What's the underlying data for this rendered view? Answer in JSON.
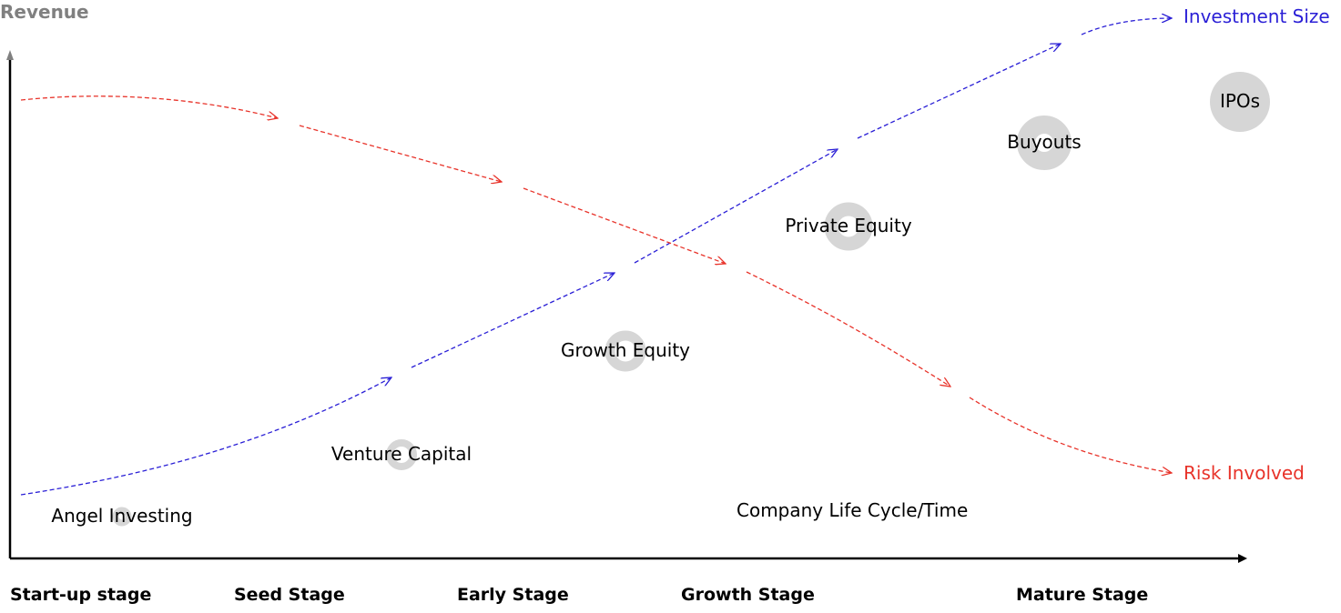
{
  "axis": {
    "y_label": "Revenue",
    "x_label": "Company Life Cycle/Time"
  },
  "stages": [
    "Start-up stage",
    "Seed Stage",
    "Early Stage",
    "Growth Stage",
    "Mature Stage"
  ],
  "nodes": [
    {
      "label": "Angel Investing"
    },
    {
      "label": "Venture Capital"
    },
    {
      "label": "Growth Equity"
    },
    {
      "label": "Private Equity"
    },
    {
      "label": "Buyouts"
    },
    {
      "label": "IPOs"
    }
  ],
  "series": [
    {
      "name": "Investment Size",
      "color": "#2a1fd6"
    },
    {
      "name": "Risk Involved",
      "color": "#e8332a"
    }
  ],
  "colors": {
    "node_fill": "#d6d6d6",
    "axis": "#000000",
    "y_arrow": "#808080"
  }
}
